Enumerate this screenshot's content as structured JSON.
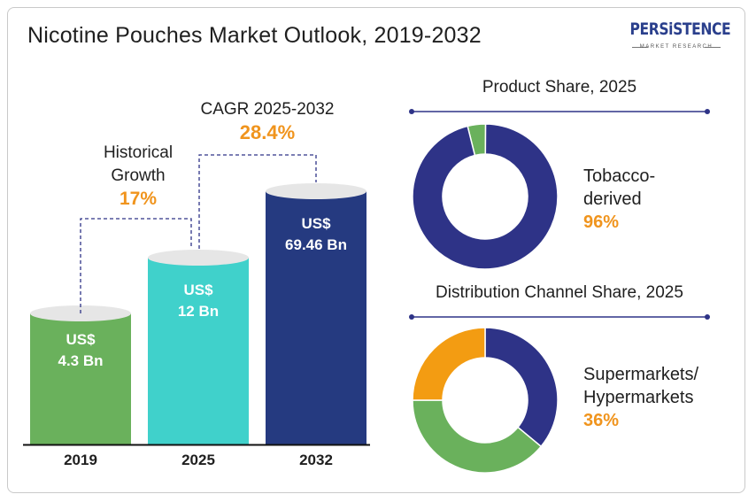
{
  "title": "Nicotine Pouches Market Outlook, 2019-2032",
  "logo": {
    "word": "PERSiSTENCE",
    "sub": "MARKET RESEARCH"
  },
  "colors": {
    "bar_2019": "#6ab15c",
    "bar_2025": "#40d1cb",
    "bar_2032": "#253a80",
    "navy": "#2e3387",
    "green": "#6ab15c",
    "orange": "#f39c12",
    "top_ellipse": "#e6e6e6",
    "accent_text": "#f0941d"
  },
  "annotations": {
    "historical": {
      "label_line1": "Historical",
      "label_line2": "Growth",
      "value": "17%"
    },
    "cagr": {
      "label": "CAGR 2025-2032",
      "value": "28.4%"
    }
  },
  "product_share": {
    "title": "Product Share, 2025",
    "label_line1": "Tobacco-",
    "label_line2": "derived",
    "pct": "96%"
  },
  "distribution_share": {
    "title": "Distribution Channel Share, 2025",
    "label_line1": "Supermarkets/",
    "label_line2": "Hypermarkets",
    "pct": "36%"
  },
  "chart_data": [
    {
      "type": "bar",
      "title": "Nicotine Pouches Market Outlook, 2019-2032",
      "categories": [
        "2019",
        "2025",
        "2032"
      ],
      "values": [
        4.3,
        12,
        69.46
      ],
      "value_labels": [
        {
          "currency": "US$",
          "amount": "4.3 Bn"
        },
        {
          "currency": "US$",
          "amount": "12 Bn"
        },
        {
          "currency": "US$",
          "amount": "69.46 Bn"
        }
      ],
      "unit": "US$ Bn"
    },
    {
      "type": "pie",
      "title": "Product Share, 2025",
      "slices": [
        {
          "name": "Tobacco-derived",
          "value": 96,
          "color": "#2e3387"
        },
        {
          "name": "",
          "value": 4,
          "color": "#6ab15c"
        }
      ]
    },
    {
      "type": "pie",
      "title": "Distribution Channel Share, 2025",
      "slices": [
        {
          "name": "Supermarkets/Hypermarkets",
          "value": 36,
          "color": "#2e3387"
        },
        {
          "name": "",
          "value": 39,
          "color": "#6ab15c"
        },
        {
          "name": "",
          "value": 25,
          "color": "#f39c12"
        }
      ]
    }
  ]
}
